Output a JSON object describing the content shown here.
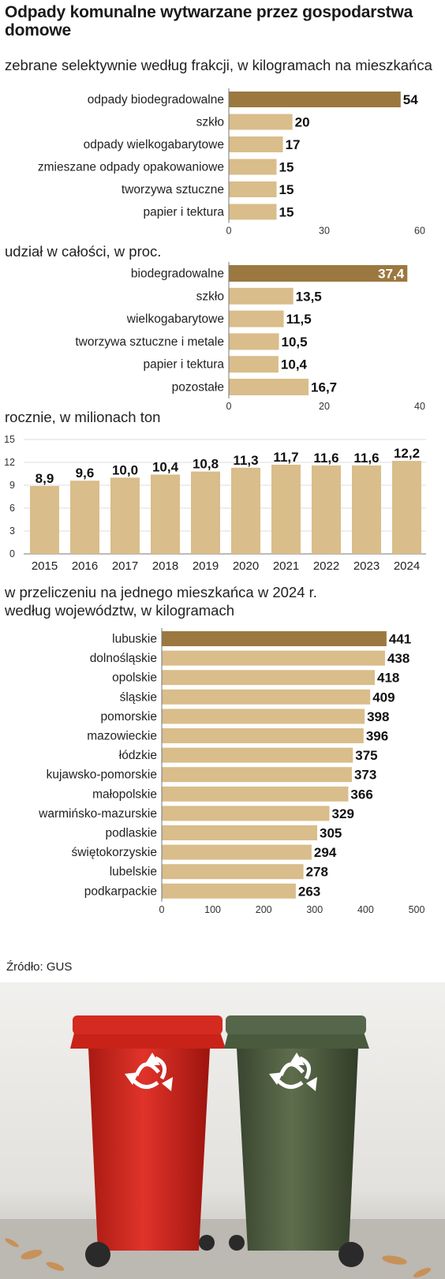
{
  "title": "Odpady komunalne wytwarzane przez gospodarstwa domowe",
  "colors": {
    "bar": "#d9bd8a",
    "highlight": "#9b7840",
    "axis": "#777777",
    "grid": "#dddddd"
  },
  "chart_data": [
    {
      "type": "bar",
      "orientation": "horizontal",
      "title": "zebrane selektywnie według frakcji, w kilogramach na mieszkańca",
      "categories": [
        "odpady biodegradowalne",
        "szkło",
        "odpady wielkogabarytowe",
        "zmieszane odpady opakowaniowe",
        "tworzywa sztuczne",
        "papier i tektura"
      ],
      "values": [
        54,
        20,
        17,
        15,
        15,
        15
      ],
      "value_labels": [
        "54",
        "20",
        "17",
        "15",
        "15",
        "15"
      ],
      "highlight": [
        0
      ],
      "xlim": [
        0,
        60
      ],
      "ticks": [
        "0",
        "30",
        "60"
      ]
    },
    {
      "type": "bar",
      "orientation": "horizontal",
      "title": "udział w całości, w proc.",
      "categories": [
        "biodegradowalne",
        "szkło",
        "wielkogabarytowe",
        "tworzywa sztuczne i metale",
        "papier i tektura",
        "pozostałe"
      ],
      "values": [
        37.4,
        13.5,
        11.5,
        10.5,
        10.4,
        16.7
      ],
      "value_labels": [
        "37,4",
        "13,5",
        "11,5",
        "10,5",
        "10,4",
        "16,7"
      ],
      "highlight": [
        0
      ],
      "xlim": [
        0,
        40
      ],
      "ticks": [
        "0",
        "20",
        "40"
      ]
    },
    {
      "type": "bar",
      "orientation": "vertical",
      "title": "rocznie, w milionach ton",
      "categories": [
        "2015",
        "2016",
        "2017",
        "2018",
        "2019",
        "2020",
        "2021",
        "2022",
        "2023",
        "2024"
      ],
      "values": [
        8.9,
        9.6,
        10.0,
        10.4,
        10.8,
        11.3,
        11.7,
        11.6,
        11.6,
        12.2
      ],
      "value_labels": [
        "8,9",
        "9,6",
        "10,0",
        "10,4",
        "10,8",
        "11,3",
        "11,7",
        "11,6",
        "11,6",
        "12,2"
      ],
      "ylim": [
        0,
        15
      ],
      "ticks": [
        "0",
        "3",
        "6",
        "9",
        "12",
        "15"
      ],
      "grid": true
    },
    {
      "type": "bar",
      "orientation": "horizontal",
      "title": "w przeliczeniu na jednego mieszkańca w 2024 r. według województw, w kilogramach",
      "categories": [
        "lubuskie",
        "dolnośląskie",
        "opolskie",
        "śląskie",
        "pomorskie",
        "mazowieckie",
        "łódzkie",
        "kujawsko-pomorskie",
        "małopolskie",
        "warmińsko-mazurskie",
        "podlaskie",
        "świętokorzyskie",
        "lubelskie",
        "podkarpackie"
      ],
      "values": [
        441,
        438,
        418,
        409,
        398,
        396,
        375,
        373,
        366,
        329,
        305,
        294,
        278,
        263
      ],
      "value_labels": [
        "441",
        "438",
        "418",
        "409",
        "398",
        "396",
        "375",
        "373",
        "366",
        "329",
        "305",
        "294",
        "278",
        "263"
      ],
      "highlight": [
        0
      ],
      "xlim": [
        0,
        500
      ],
      "ticks": [
        "0",
        "100",
        "200",
        "300",
        "400",
        "500"
      ]
    }
  ],
  "subtitle4_lines": [
    "w przeliczeniu na jednego mieszkańca w 2024 r.",
    "według województw, w kilogramach"
  ],
  "source": "Źródło: GUS",
  "photo": {
    "description_icon": "recycle-icon",
    "bins": [
      "red-bin",
      "green-bin"
    ]
  }
}
